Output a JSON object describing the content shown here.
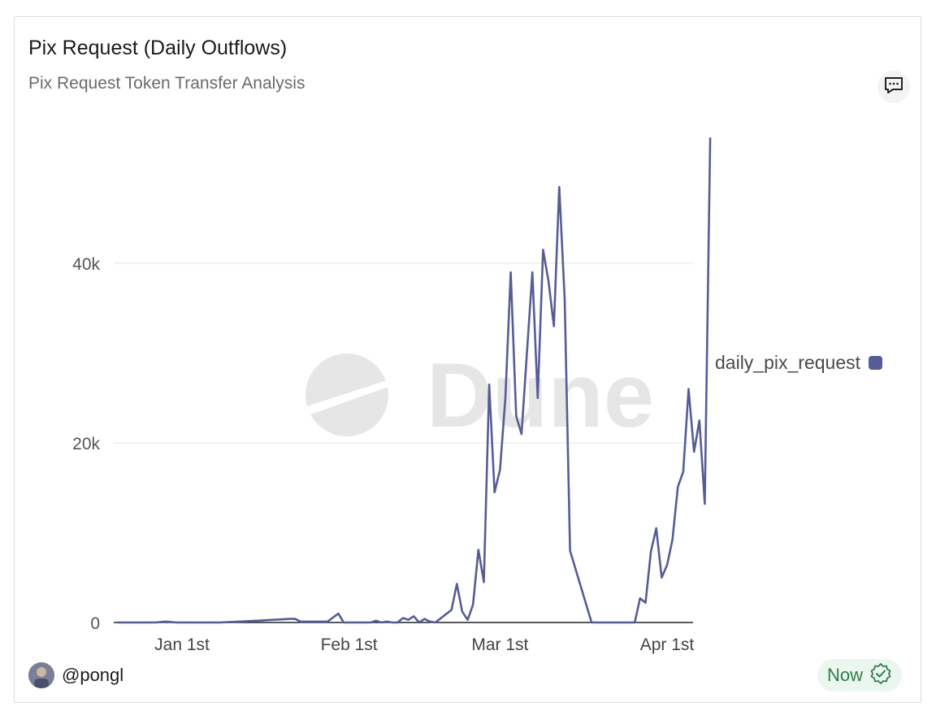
{
  "card": {
    "title": "Pix Request (Daily Outflows)",
    "subtitle": "Pix Request Token Transfer Analysis",
    "comment_icon": "comment-icon",
    "watermark": "Dune"
  },
  "footer": {
    "username": "@pongl",
    "avatar_icon": "user-avatar",
    "status_text": "Now",
    "status_icon": "check-badge-icon",
    "status_color": "#2f7d4b"
  },
  "chart_data": {
    "type": "line",
    "title": "Pix Request (Daily Outflows)",
    "subtitle": "Pix Request Token Transfer Analysis",
    "xlabel": "",
    "ylabel": "",
    "x_tick_labels": [
      "Jan 1st",
      "Feb 1st",
      "Mar 1st",
      "Apr 1st"
    ],
    "x_tick_dates": [
      "2025-01-01",
      "2025-02-01",
      "2025-03-01",
      "2025-04-01"
    ],
    "y_tick_labels": [
      "0",
      "20k",
      "40k"
    ],
    "y_tick_values": [
      0,
      20000,
      40000
    ],
    "xlim": [
      "2024-12-20",
      "2025-04-06"
    ],
    "ylim": [
      0,
      55000
    ],
    "grid": true,
    "legend_position": "right",
    "series": [
      {
        "name": "daily_pix_request",
        "color": "#565c95",
        "points": [
          [
            "2024-12-20",
            0
          ],
          [
            "2024-12-27",
            0
          ],
          [
            "2024-12-29",
            100
          ],
          [
            "2024-12-31",
            0
          ],
          [
            "2025-01-08",
            0
          ],
          [
            "2025-01-15",
            200
          ],
          [
            "2025-01-21",
            400
          ],
          [
            "2025-01-22",
            400
          ],
          [
            "2025-01-23",
            100
          ],
          [
            "2025-01-28",
            100
          ],
          [
            "2025-01-30",
            1000
          ],
          [
            "2025-01-31",
            0
          ],
          [
            "2025-02-05",
            0
          ],
          [
            "2025-02-06",
            200
          ],
          [
            "2025-02-07",
            0
          ],
          [
            "2025-02-08",
            100
          ],
          [
            "2025-02-09",
            0
          ],
          [
            "2025-02-10",
            0
          ],
          [
            "2025-02-11",
            500
          ],
          [
            "2025-02-12",
            300
          ],
          [
            "2025-02-13",
            700
          ],
          [
            "2025-02-14",
            0
          ],
          [
            "2025-02-15",
            400
          ],
          [
            "2025-02-16",
            100
          ],
          [
            "2025-02-17",
            0
          ],
          [
            "2025-02-20",
            1400
          ],
          [
            "2025-02-21",
            4300
          ],
          [
            "2025-02-22",
            1200
          ],
          [
            "2025-02-23",
            300
          ],
          [
            "2025-02-24",
            2000
          ],
          [
            "2025-02-25",
            8100
          ],
          [
            "2025-02-26",
            4500
          ],
          [
            "2025-02-27",
            26500
          ],
          [
            "2025-02-28",
            14500
          ],
          [
            "2025-03-01",
            17000
          ],
          [
            "2025-03-02",
            25000
          ],
          [
            "2025-03-03",
            39000
          ],
          [
            "2025-03-04",
            23000
          ],
          [
            "2025-03-05",
            21000
          ],
          [
            "2025-03-06",
            30000
          ],
          [
            "2025-03-07",
            39000
          ],
          [
            "2025-03-08",
            25000
          ],
          [
            "2025-03-09",
            41500
          ],
          [
            "2025-03-10",
            38000
          ],
          [
            "2025-03-11",
            33000
          ],
          [
            "2025-03-12",
            48500
          ],
          [
            "2025-03-13",
            36000
          ],
          [
            "2025-03-14",
            8000
          ],
          [
            "2025-03-18",
            0
          ],
          [
            "2025-03-26",
            0
          ],
          [
            "2025-03-27",
            2700
          ],
          [
            "2025-03-28",
            2200
          ],
          [
            "2025-03-29",
            7900
          ],
          [
            "2025-03-30",
            10500
          ],
          [
            "2025-03-31",
            5000
          ],
          [
            "2025-04-01",
            6400
          ],
          [
            "2025-04-02",
            9200
          ],
          [
            "2025-04-03",
            15100
          ],
          [
            "2025-04-04",
            16800
          ],
          [
            "2025-04-05",
            26000
          ],
          [
            "2025-04-06",
            19000
          ],
          [
            "2025-04-07",
            22500
          ],
          [
            "2025-04-08",
            13200
          ],
          [
            "2025-04-09",
            54000
          ]
        ]
      }
    ]
  }
}
